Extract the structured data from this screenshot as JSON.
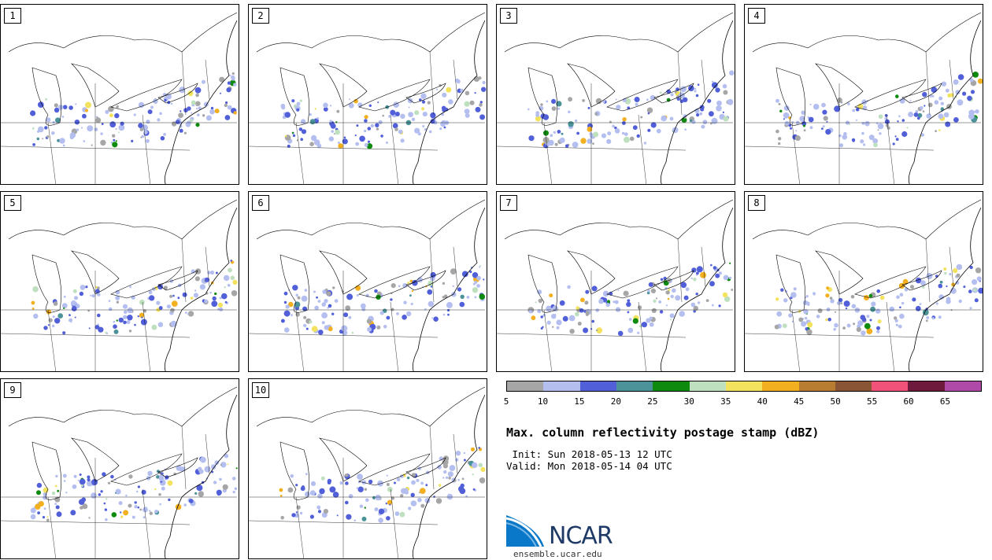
{
  "panels": [
    {
      "label": "1"
    },
    {
      "label": "2"
    },
    {
      "label": "3"
    },
    {
      "label": "4"
    },
    {
      "label": "5"
    },
    {
      "label": "6"
    },
    {
      "label": "7"
    },
    {
      "label": "8"
    },
    {
      "label": "9"
    },
    {
      "label": "10"
    }
  ],
  "colorbar": {
    "colors": [
      "#a6a6a6",
      "#b4bff0",
      "#5160d8",
      "#4c9399",
      "#0e8a0e",
      "#bfe0bf",
      "#f2e25e",
      "#f2b020",
      "#b87d30",
      "#8a5535",
      "#f0527a",
      "#6e1a3c",
      "#b04aa8"
    ],
    "ticks": [
      "5",
      "10",
      "15",
      "20",
      "25",
      "30",
      "35",
      "40",
      "45",
      "50",
      "55",
      "60",
      "65"
    ]
  },
  "title": "Max. column reflectivity postage stamp (dBZ)",
  "init": " Init: Sun 2018-05-13 12 UTC",
  "valid": "Valid: Mon 2018-05-14 04 UTC",
  "logo": {
    "text": "NCAR",
    "site": "ensemble.ucar.edu"
  }
}
